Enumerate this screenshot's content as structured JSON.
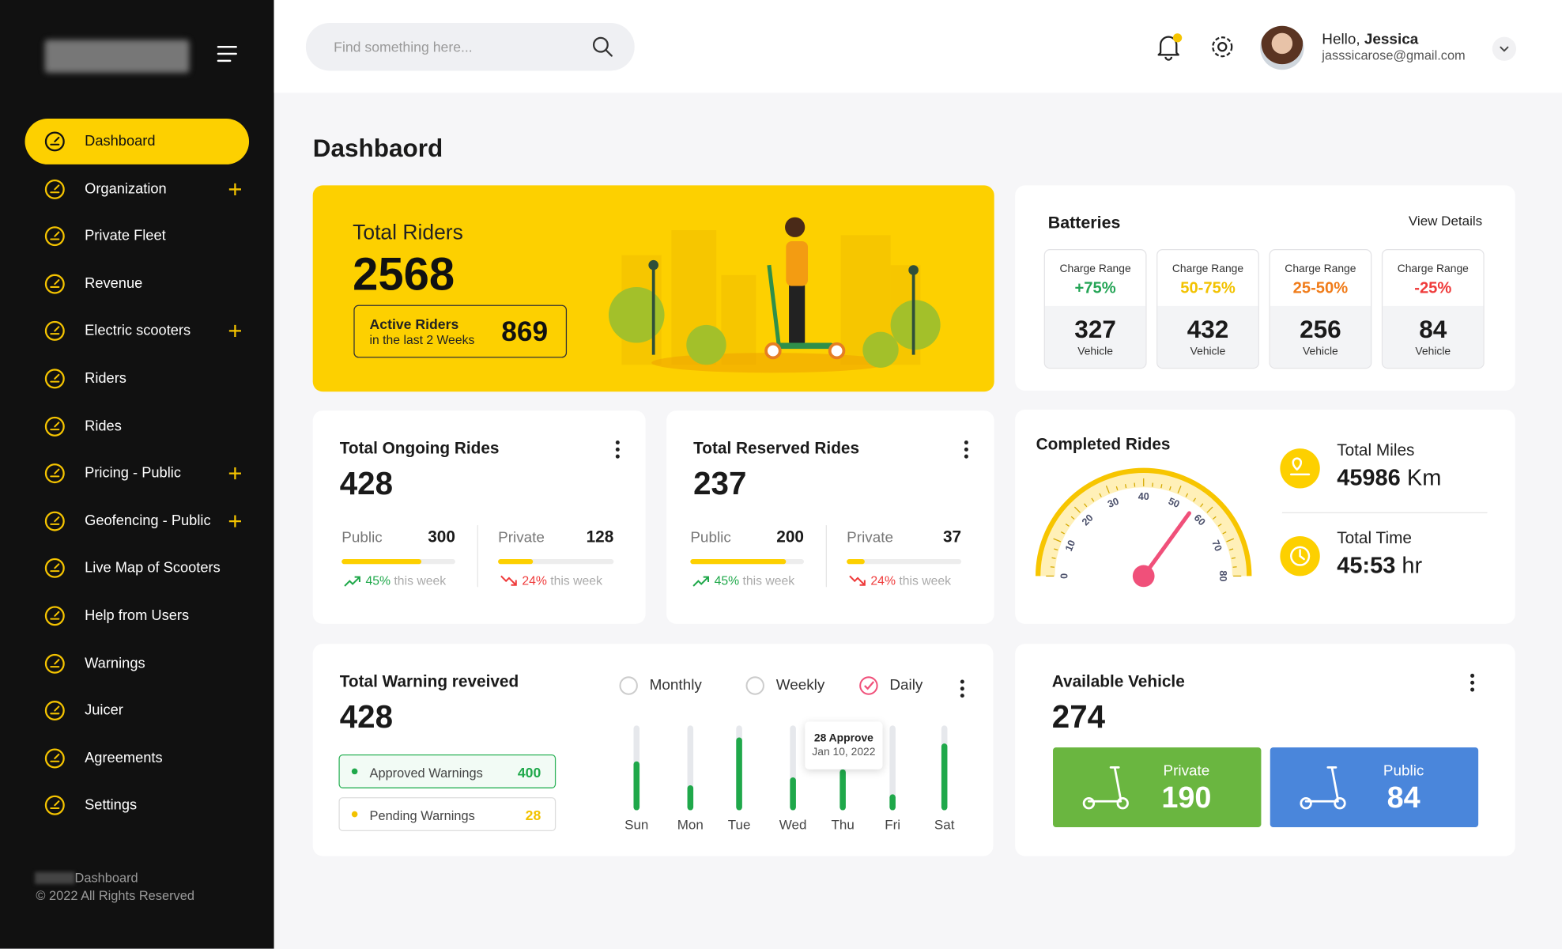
{
  "sidebar": {
    "nav": [
      {
        "label": "Dashboard",
        "active": true
      },
      {
        "label": "Organization",
        "expandable": true
      },
      {
        "label": "Private Fleet"
      },
      {
        "label": "Revenue"
      },
      {
        "label": "Electric scooters",
        "expandable": true
      },
      {
        "label": "Riders"
      },
      {
        "label": "Rides"
      },
      {
        "label": "Pricing - Public",
        "expandable": true
      },
      {
        "label": "Geofencing - Public",
        "expandable": true
      },
      {
        "label": "Live Map of Scooters"
      },
      {
        "label": "Help from Users"
      },
      {
        "label": "Warnings"
      },
      {
        "label": "Juicer"
      },
      {
        "label": "Agreements"
      },
      {
        "label": "Settings"
      }
    ],
    "footer_title": "Dashboard",
    "copyright": "© 2022 All Rights Reserved"
  },
  "header": {
    "search_placeholder": "Find something here...",
    "greeting": "Hello,",
    "user_name": "Jessica",
    "email": "jasssicarose@gmail.com"
  },
  "page_title": "Dashbaord",
  "total_riders": {
    "label": "Total Riders",
    "value": 2568,
    "active_label": "Active Riders",
    "active_sub": "in the last 2 Weeks",
    "active_value": 869
  },
  "batteries": {
    "title": "Batteries",
    "link": "View Details",
    "items": [
      {
        "label": "Charge Range",
        "range": "+75%",
        "color": "#23a455",
        "count": 327,
        "unit": "Vehicle"
      },
      {
        "label": "Charge Range",
        "range": "50-75%",
        "color": "#f2c200",
        "count": 432,
        "unit": "Vehicle"
      },
      {
        "label": "Charge Range",
        "range": "25-50%",
        "color": "#f07c1a",
        "count": 256,
        "unit": "Vehicle"
      },
      {
        "label": "Charge Range",
        "range": "-25%",
        "color": "#ef3b3b",
        "count": 84,
        "unit": "Vehicle"
      }
    ]
  },
  "ongoing_rides": {
    "title": "Total Ongoing Rides",
    "total": 428,
    "public": {
      "label": "Public",
      "value": 300,
      "trend": "45%",
      "trend_text": "this week",
      "direction": "up"
    },
    "private": {
      "label": "Private",
      "value": 128,
      "trend": "24%",
      "trend_text": "this week",
      "direction": "down"
    }
  },
  "reserved_rides": {
    "title": "Total Reserved Rides",
    "total": 237,
    "public": {
      "label": "Public",
      "value": 200,
      "trend": "45%",
      "trend_text": "this week",
      "direction": "up"
    },
    "private": {
      "label": "Private",
      "value": 37,
      "trend": "24%",
      "trend_text": "this week",
      "direction": "down"
    }
  },
  "completed_rides": {
    "title": "Completed Rides",
    "gauge": {
      "ticks": [
        0,
        10,
        20,
        30,
        40,
        50,
        60,
        70,
        80
      ],
      "value": 56
    },
    "miles_label": "Total Miles",
    "miles": 45986,
    "miles_unit": "Km",
    "time_label": "Total Time",
    "time": "45:53",
    "time_unit": "hr"
  },
  "warnings": {
    "title": "Total Warning reveived",
    "total": 428,
    "approved": {
      "label": "Approved Warnings",
      "value": 400
    },
    "pending": {
      "label": "Pending Warnings",
      "value": 28
    },
    "periods": [
      {
        "label": "Monthly",
        "selected": false
      },
      {
        "label": "Weekly",
        "selected": false
      },
      {
        "label": "Daily",
        "selected": true
      }
    ],
    "chart": {
      "type": "bar",
      "categories": [
        "Sun",
        "Mon",
        "Tue",
        "Wed",
        "Thu",
        "Fri",
        "Sat"
      ],
      "values": [
        58,
        29,
        86,
        39,
        48,
        19,
        79
      ],
      "ylim": [
        0,
        100
      ],
      "color": "#1fa84a"
    },
    "tooltip": {
      "title": "28 Approve",
      "date": "Jan 10, 2022"
    }
  },
  "available": {
    "title": "Available Vehicle",
    "total": 274,
    "private": {
      "label": "Private",
      "value": 190,
      "color": "#6ab640"
    },
    "public": {
      "label": "Public",
      "value": 84,
      "color": "#4a86db"
    }
  }
}
